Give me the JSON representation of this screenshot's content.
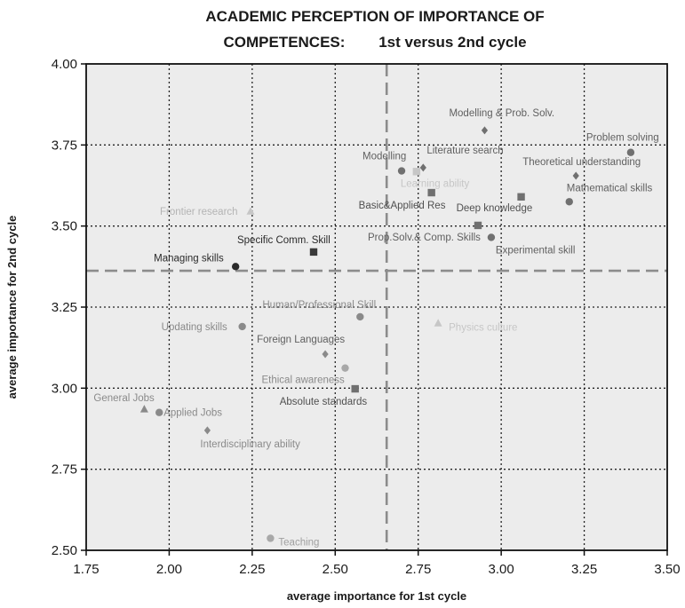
{
  "chart_data": {
    "type": "scatter",
    "title_line1": "ACADEMIC PERCEPTION OF  IMPORTANCE OF",
    "title_line2": "COMPETENCES:        1st versus 2nd cycle",
    "xlabel": "average importance for 1st cycle",
    "ylabel": "average importance for 2nd cycle",
    "xlim": [
      1.75,
      3.5
    ],
    "ylim": [
      2.5,
      4.0
    ],
    "xticks": [
      "1.75",
      "2.00",
      "2.25",
      "2.50",
      "2.75",
      "3.00",
      "3.25",
      "3.50"
    ],
    "yticks": [
      "2.50",
      "2.75",
      "3.00",
      "3.25",
      "3.50",
      "3.75",
      "4.00"
    ],
    "grid": true,
    "reference_lines": {
      "x": 2.655,
      "y": 3.362
    },
    "points": [
      {
        "label": "Modelling & Prob. Solv.",
        "x": 2.95,
        "y": 3.795,
        "marker": "diamond",
        "color": "#707070",
        "label_color": "#606060",
        "label_dx": -40,
        "label_dy": -16
      },
      {
        "label": "Problem solving",
        "x": 3.39,
        "y": 3.727,
        "marker": "circle",
        "color": "#707070",
        "label_color": "#606060",
        "label_dx": -50,
        "label_dy": -13
      },
      {
        "label": "Modelling",
        "x": 2.7,
        "y": 3.67,
        "marker": "circle",
        "color": "#707070",
        "label_color": "#606060",
        "label_dx": -44,
        "label_dy": -13
      },
      {
        "label": "Literature search",
        "x": 2.765,
        "y": 3.68,
        "marker": "diamond",
        "color": "#707070",
        "label_color": "#606060",
        "label_dx": 4,
        "label_dy": -16
      },
      {
        "label": "Learning ability",
        "x": 2.745,
        "y": 3.668,
        "marker": "square",
        "color": "#c6c6c6",
        "label_color": "#c6c6c6",
        "label_dx": -18,
        "label_dy": 17
      },
      {
        "label": "Theoretical understanding",
        "x": 3.225,
        "y": 3.655,
        "marker": "diamond",
        "color": "#707070",
        "label_color": "#606060",
        "label_dx": -60,
        "label_dy": -12
      },
      {
        "label": "Mathematical skills",
        "x": 3.205,
        "y": 3.575,
        "marker": "circle",
        "color": "#707070",
        "label_color": "#606060",
        "label_dx": -3,
        "label_dy": -12
      },
      {
        "label": "Basic&Applied Res",
        "x": 2.79,
        "y": 3.603,
        "marker": "square",
        "color": "#707070",
        "label_color": "#505050",
        "label_dx": -82,
        "label_dy": 18
      },
      {
        "label": "Deep knowledge",
        "x": 3.06,
        "y": 3.59,
        "marker": "square",
        "color": "#707070",
        "label_color": "#505050",
        "label_dx": -73,
        "label_dy": 16
      },
      {
        "label": "Frontier research",
        "x": 2.245,
        "y": 3.545,
        "marker": "triangle",
        "color": "#c6c6c6",
        "label_color": "#b4b4b4",
        "label_dx": -102,
        "label_dy": 4
      },
      {
        "label": "Prop.Solv.& Comp. Skills",
        "x": 2.93,
        "y": 3.502,
        "marker": "square",
        "color": "#707070",
        "label_color": "#606060",
        "label_dx": -124,
        "label_dy": 17
      },
      {
        "label": "Experimental skill",
        "x": 2.97,
        "y": 3.465,
        "marker": "circle",
        "color": "#707070",
        "label_color": "#606060",
        "label_dx": 5,
        "label_dy": 18
      },
      {
        "label": "Specific Comm. Skill",
        "x": 2.435,
        "y": 3.42,
        "marker": "square",
        "color": "#3a3a3a",
        "label_color": "#2a2a2a",
        "label_dx": -86,
        "label_dy": -10
      },
      {
        "label": "Managing skills",
        "x": 2.2,
        "y": 3.375,
        "marker": "circle",
        "color": "#2a2a2a",
        "label_color": "#2a2a2a",
        "label_dx": -92,
        "label_dy": -6
      },
      {
        "label": "Human/Professional Skill",
        "x": 2.575,
        "y": 3.22,
        "marker": "circle",
        "color": "#8a8a8a",
        "label_color": "#8a8a8a",
        "label_dx": -110,
        "label_dy": -10
      },
      {
        "label": "Physics culture",
        "x": 2.81,
        "y": 3.2,
        "marker": "triangle",
        "color": "#c6c6c6",
        "label_color": "#c6c6c6",
        "label_dx": 12,
        "label_dy": 8
      },
      {
        "label": "Updating skills",
        "x": 2.22,
        "y": 3.19,
        "marker": "circle",
        "color": "#8a8a8a",
        "label_color": "#8a8a8a",
        "label_dx": -91,
        "label_dy": 4
      },
      {
        "label": "Foreign Languages",
        "x": 2.47,
        "y": 3.105,
        "marker": "diamond",
        "color": "#8a8a8a",
        "label_color": "#606060",
        "label_dx": -77,
        "label_dy": -13
      },
      {
        "label": "Ethical awareness",
        "x": 2.53,
        "y": 3.062,
        "marker": "circle",
        "color": "#a8a8a8",
        "label_color": "#8a8a8a",
        "label_dx": -94,
        "label_dy": 17
      },
      {
        "label": "Absolute standards",
        "x": 2.56,
        "y": 2.998,
        "marker": "square",
        "color": "#707070",
        "label_color": "#505050",
        "label_dx": -85,
        "label_dy": 18
      },
      {
        "label": "General Jobs",
        "x": 1.925,
        "y": 2.935,
        "marker": "triangle",
        "color": "#8a8a8a",
        "label_color": "#8a8a8a",
        "label_dx": -57,
        "label_dy": -9
      },
      {
        "label": "Applied Jobs",
        "x": 1.97,
        "y": 2.925,
        "marker": "circle",
        "color": "#8a8a8a",
        "label_color": "#8a8a8a",
        "label_dx": 5,
        "label_dy": 4
      },
      {
        "label": "Interdisciplinary ability",
        "x": 2.115,
        "y": 2.87,
        "marker": "diamond",
        "color": "#8a8a8a",
        "label_color": "#8a8a8a",
        "label_dx": -8,
        "label_dy": 19
      },
      {
        "label": "Teaching",
        "x": 2.305,
        "y": 2.537,
        "marker": "circle",
        "color": "#a8a8a8",
        "label_color": "#a0a0a0",
        "label_dx": 9,
        "label_dy": 8
      }
    ]
  }
}
